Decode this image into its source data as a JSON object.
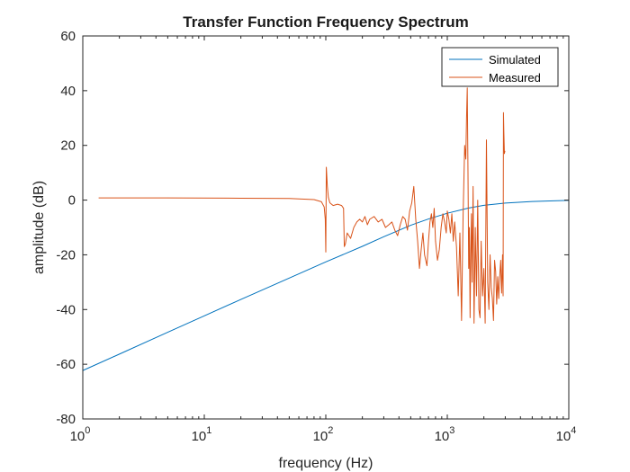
{
  "chart_data": {
    "type": "line",
    "title": "Transfer Function Frequency Spectrum",
    "xlabel": "frequency (Hz)",
    "ylabel": "amplitude (dB)",
    "xscale": "log",
    "xlim": [
      1,
      10000
    ],
    "ylim": [
      -80,
      60
    ],
    "x_ticks": [
      {
        "base": "10",
        "exp": "0",
        "value": 1
      },
      {
        "base": "10",
        "exp": "1",
        "value": 10
      },
      {
        "base": "10",
        "exp": "2",
        "value": 100
      },
      {
        "base": "10",
        "exp": "3",
        "value": 1000
      },
      {
        "base": "10",
        "exp": "4",
        "value": 10000
      }
    ],
    "y_ticks": [
      "60",
      "40",
      "20",
      "0",
      "-20",
      "-40",
      "-60",
      "-80"
    ],
    "grid": false,
    "legend_position": "top-right",
    "series": [
      {
        "name": "Simulated",
        "color": "#0072BD",
        "x": [
          1,
          2,
          5,
          10,
          20,
          50,
          100,
          200,
          300,
          500,
          700,
          1000,
          1500,
          2000,
          3000,
          5000,
          7000,
          10000
        ],
        "y": [
          -62.3,
          -56.3,
          -48.3,
          -42.3,
          -36.3,
          -28.5,
          -22.6,
          -16.9,
          -13.4,
          -9.2,
          -6.9,
          -4.8,
          -2.9,
          -1.9,
          -1.1,
          -0.5,
          -0.3,
          -0.1
        ]
      },
      {
        "name": "Measured",
        "color": "#D95319",
        "x": [
          1.35,
          5,
          20,
          50,
          80,
          92,
          97,
          99,
          100,
          101,
          103,
          105,
          108,
          115,
          125,
          135,
          140,
          142,
          145,
          150,
          160,
          170,
          180,
          190,
          200,
          210,
          220,
          230,
          250,
          270,
          290,
          310,
          330,
          350,
          370,
          390,
          410,
          430,
          450,
          470,
          490,
          510,
          530,
          550,
          570,
          590,
          610,
          630,
          650,
          680,
          700,
          720,
          740,
          760,
          780,
          800,
          830,
          860,
          890,
          920,
          950,
          980,
          1000,
          1030,
          1060,
          1090,
          1120,
          1150,
          1190,
          1230,
          1270,
          1310,
          1350,
          1390,
          1420,
          1440,
          1460,
          1480,
          1500,
          1520,
          1540,
          1560,
          1580,
          1600,
          1630,
          1660,
          1700,
          1740,
          1780,
          1820,
          1860,
          1900,
          1950,
          2000,
          2050,
          2100,
          2150,
          2200,
          2250,
          2300,
          2350,
          2400,
          2450,
          2500,
          2550,
          2600,
          2650,
          2700,
          2750,
          2800,
          2850,
          2880,
          2900,
          2920,
          2950,
          2980
        ],
        "y": [
          0.8,
          0.8,
          0.7,
          0.6,
          0.2,
          -0.6,
          -2.5,
          -7,
          -19,
          12,
          5,
          1,
          -1,
          -2,
          -1.5,
          -2,
          -3,
          -17,
          -16,
          -12,
          -14,
          -10,
          -8,
          -7,
          -8,
          -6,
          -9,
          -7,
          -6,
          -8,
          -7,
          -10,
          -9,
          -8,
          -11,
          -13,
          -9,
          -6,
          -7,
          -11,
          -4,
          -1,
          5,
          -7,
          -15,
          -25,
          -18,
          -12,
          -20,
          -24,
          -15,
          -8,
          -5,
          -10,
          -3,
          -15,
          -22,
          -18,
          -10,
          -5,
          -8,
          -12,
          -4,
          -7,
          -12,
          -5,
          -15,
          -8,
          -17,
          -35,
          -12,
          -44,
          -5,
          20,
          15,
          30,
          41,
          10,
          -25,
          -10,
          -43,
          -20,
          -5,
          -30,
          5,
          -45,
          -10,
          -35,
          0,
          -40,
          -43,
          -15,
          -35,
          -25,
          -45,
          22,
          -30,
          -40,
          -20,
          -32,
          -36,
          -44,
          -22,
          -26,
          -38,
          -28,
          -36,
          -28,
          -22,
          -34,
          -20,
          -35,
          32,
          25,
          17,
          18
        ]
      }
    ]
  }
}
